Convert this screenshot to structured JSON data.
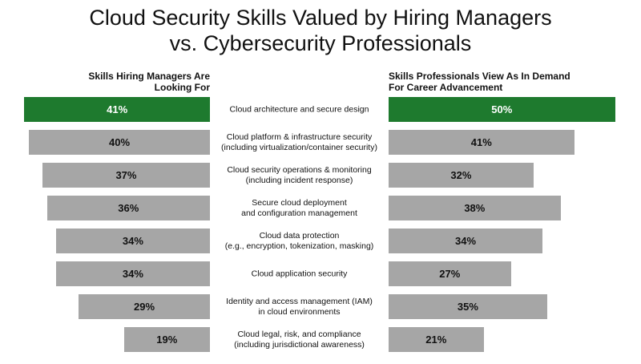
{
  "chart_data": {
    "type": "butterfly-bar",
    "title": "Cloud Security Skills Valued by Hiring Managers\nvs. Cybersecurity Professionals",
    "categories": [
      "Cloud architecture and secure design",
      "Cloud platform & infrastructure security\n(including virtualization/container security)",
      "Cloud security operations & monitoring\n(including incident response)",
      "Secure cloud deployment\nand configuration management",
      "Cloud data protection\n(e.g., encryption, tokenization, masking)",
      "Cloud application security",
      "Identity and access management (IAM)\nin cloud environments",
      "Cloud legal, risk, and compliance\n(including jurisdictional awareness)"
    ],
    "series": [
      {
        "name": "Skills Hiring Managers Are\nLooking For",
        "values": [
          41,
          40,
          37,
          36,
          34,
          34,
          29,
          19
        ],
        "value_labels": [
          "41%",
          "40%",
          "37%",
          "36%",
          "34%",
          "34%",
          "29%",
          "19%"
        ],
        "colors": [
          "#1e7a2e",
          "#a6a6a6",
          "#a6a6a6",
          "#a6a6a6",
          "#a6a6a6",
          "#a6a6a6",
          "#a6a6a6",
          "#a6a6a6"
        ]
      },
      {
        "name": "Skills Professionals View As In Demand\nFor Career Advancement",
        "values": [
          50,
          41,
          32,
          38,
          34,
          27,
          35,
          21
        ],
        "value_labels": [
          "50%",
          "41%",
          "32%",
          "38%",
          "34%",
          "27%",
          "35%",
          "21%"
        ],
        "colors": [
          "#1e7a2e",
          "#a6a6a6",
          "#a6a6a6",
          "#a6a6a6",
          "#a6a6a6",
          "#a6a6a6",
          "#a6a6a6",
          "#a6a6a6"
        ]
      }
    ]
  }
}
